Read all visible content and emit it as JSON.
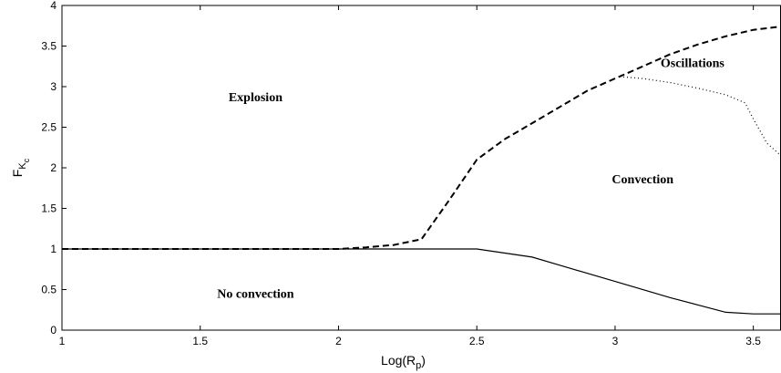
{
  "chart_data": {
    "type": "line",
    "xlabel": "Log(R_p)",
    "ylabel": "F_K_c",
    "xlim": [
      1,
      3.6
    ],
    "ylim": [
      0,
      4
    ],
    "grid": false,
    "xticks": [
      "1",
      "1.5",
      "2",
      "2.5",
      "3",
      "3.5"
    ],
    "yticks": [
      "0",
      "0.5",
      "1",
      "1.5",
      "2",
      "2.5",
      "3",
      "3.5",
      "4"
    ],
    "series": [
      {
        "style": "dashed",
        "x": [
          1.0,
          2.0,
          2.1,
          2.2,
          2.3,
          2.4,
          2.5,
          2.6,
          2.7,
          2.8,
          2.9,
          3.0,
          3.1,
          3.2,
          3.3,
          3.4,
          3.5,
          3.6
        ],
        "y": [
          1.0,
          1.0,
          1.02,
          1.05,
          1.12,
          1.6,
          2.1,
          2.35,
          2.55,
          2.75,
          2.95,
          3.1,
          3.25,
          3.4,
          3.52,
          3.62,
          3.7,
          3.74
        ]
      },
      {
        "style": "solid",
        "x": [
          1.0,
          2.0,
          2.5,
          2.7,
          2.8,
          3.0,
          3.2,
          3.3,
          3.4,
          3.5,
          3.6
        ],
        "y": [
          1.0,
          1.0,
          1.0,
          0.9,
          0.8,
          0.6,
          0.4,
          0.31,
          0.22,
          0.2,
          0.2
        ]
      },
      {
        "style": "dotted",
        "x": [
          3.03,
          3.1,
          3.2,
          3.3,
          3.4,
          3.47,
          3.5,
          3.55,
          3.6
        ],
        "y": [
          3.12,
          3.1,
          3.05,
          2.98,
          2.9,
          2.8,
          2.6,
          2.3,
          2.15
        ]
      }
    ],
    "annotations": [
      {
        "text": "Explosion",
        "x": 1.7,
        "y": 2.82
      },
      {
        "text": "Oscillations",
        "x": 3.28,
        "y": 3.24
      },
      {
        "text": "Convection",
        "x": 3.1,
        "y": 1.81
      },
      {
        "text": "No convection",
        "x": 1.7,
        "y": 0.4
      }
    ]
  }
}
